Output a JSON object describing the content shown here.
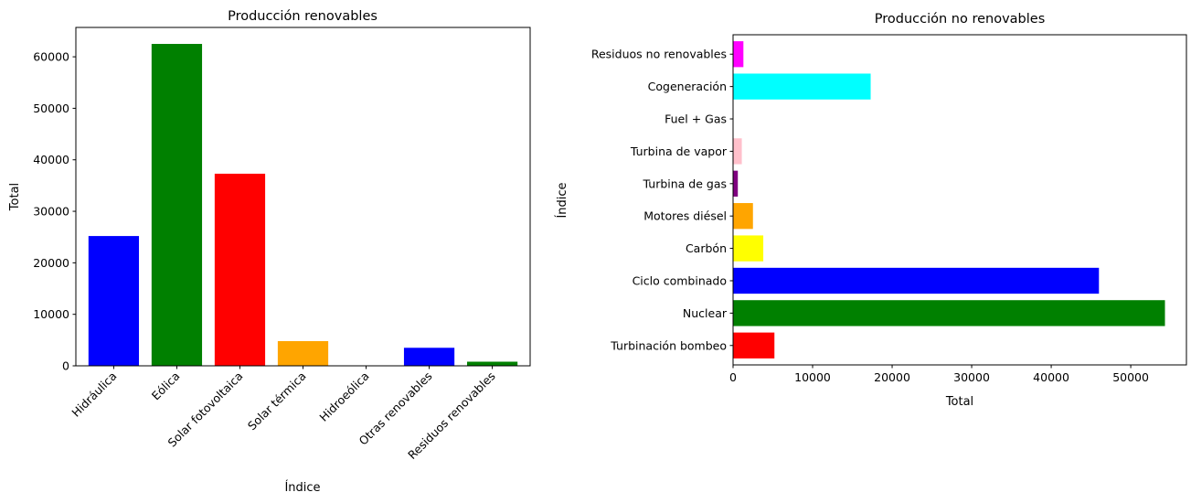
{
  "chart_data": [
    {
      "type": "bar",
      "orientation": "vertical",
      "title": "Producción renovables",
      "xlabel": "Índice",
      "ylabel": "Total",
      "categories": [
        "Hidráulica",
        "Eólica",
        "Solar fotovoltaica",
        "Solar térmica",
        "Hidroeólica",
        "Otras renovables",
        "Residuos renovables"
      ],
      "values": [
        25200,
        62500,
        37300,
        4800,
        0,
        3500,
        800
      ],
      "colors": [
        "#0000ff",
        "#008000",
        "#ff0000",
        "#ffa500",
        "#800080",
        "#0000ff",
        "#008000"
      ],
      "ylim": [
        0,
        65700
      ],
      "yticks": [
        0,
        10000,
        20000,
        30000,
        40000,
        50000,
        60000
      ],
      "grid": false,
      "xtick_rotation": 45
    },
    {
      "type": "bar",
      "orientation": "horizontal",
      "title": "Producción no renovables",
      "xlabel": "Total",
      "ylabel": "Índice",
      "categories": [
        "Turbinación bombeo",
        "Nuclear",
        "Ciclo combinado",
        "Carbón",
        "Motores diésel",
        "Turbina de gas",
        "Turbina de vapor",
        "Fuel + Gas",
        "Cogeneración",
        "Residuos no renovables"
      ],
      "values": [
        5200,
        54300,
        46000,
        3800,
        2500,
        600,
        1100,
        0,
        17300,
        1300
      ],
      "colors": [
        "#ff0000",
        "#008000",
        "#0000ff",
        "#ffff00",
        "#ffa500",
        "#800080",
        "#ffc0cb",
        "#a52a2a",
        "#00ffff",
        "#ff00ff"
      ],
      "xlim": [
        0,
        57000
      ],
      "xticks": [
        0,
        10000,
        20000,
        30000,
        40000,
        50000
      ],
      "grid": false
    }
  ]
}
